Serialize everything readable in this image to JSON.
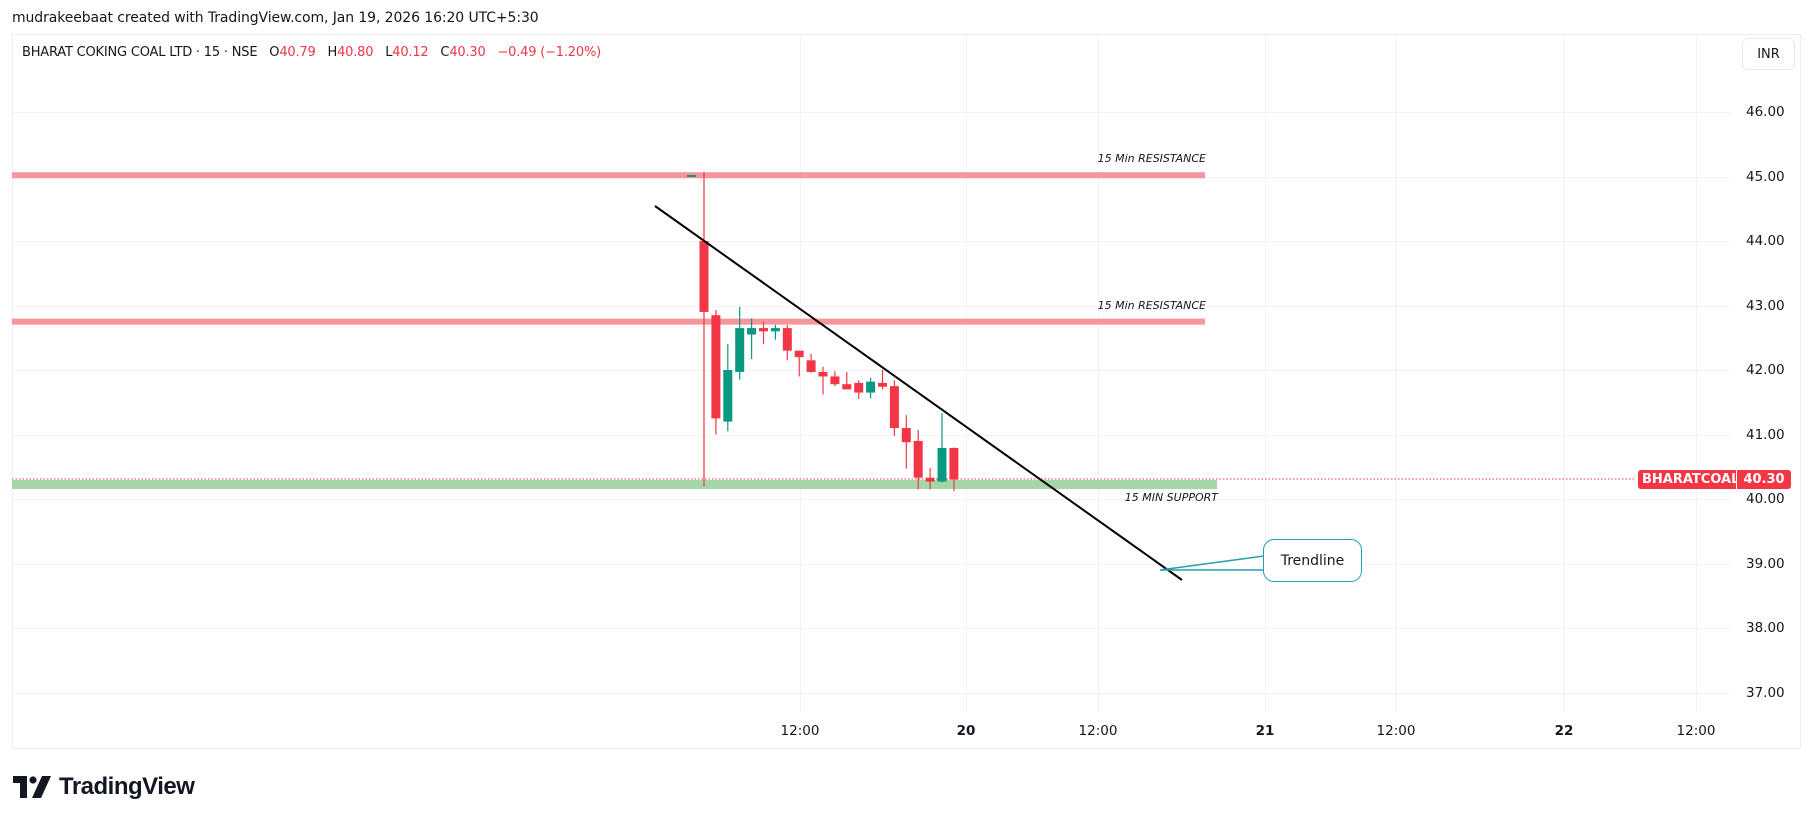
{
  "attribution": "mudrakeebaat created with TradingView.com, Jan 19, 2026 16:20 UTC+5:30",
  "legend": {
    "symbol": "BHARAT COKING COAL LTD · 15 · NSE",
    "open_label": "O",
    "open": "40.79",
    "high_label": "H",
    "high": "40.80",
    "low_label": "L",
    "low": "40.12",
    "close_label": "C",
    "close": "40.30",
    "change": "−0.49 (−1.20%)"
  },
  "currency": "INR",
  "price_tag": {
    "ticker": "BHARATCOAL",
    "price": "40.30"
  },
  "annotations": {
    "resistance_1": "15 Min RESISTANCE",
    "resistance_2": "15 Min RESISTANCE",
    "support": "15 MIN SUPPORT",
    "trendline_callout": "Trendline"
  },
  "brand": "TradingView",
  "colors": {
    "up": "#089981",
    "down": "#f23645",
    "resistance": "#f7959d",
    "support": "#a5d6a7",
    "callout_border": "#22a0b0",
    "trendline": "#000000"
  },
  "chart_data": {
    "type": "candlestick",
    "title": "BHARAT COKING COAL LTD · 15 · NSE",
    "currency": "INR",
    "interval": "15",
    "ylim": [
      36.6,
      46.9
    ],
    "yticks": [
      "46.00",
      "45.00",
      "44.00",
      "43.00",
      "42.00",
      "41.00",
      "40.00",
      "39.00",
      "38.00",
      "37.00"
    ],
    "xticks": [
      "12:00",
      "20",
      "12:00",
      "21",
      "12:00",
      "22",
      "12:00"
    ],
    "grid": true,
    "last_price": 40.3,
    "candles": [
      {
        "o": 44.0,
        "h": 45.07,
        "l": 40.2,
        "c": 42.9
      },
      {
        "o": 42.85,
        "h": 42.93,
        "l": 41.0,
        "c": 41.25
      },
      {
        "o": 41.2,
        "h": 42.4,
        "l": 41.05,
        "c": 42.0
      },
      {
        "o": 41.97,
        "h": 42.98,
        "l": 41.85,
        "c": 42.65
      },
      {
        "o": 42.55,
        "h": 42.8,
        "l": 42.17,
        "c": 42.65
      },
      {
        "o": 42.65,
        "h": 42.75,
        "l": 42.4,
        "c": 42.6
      },
      {
        "o": 42.6,
        "h": 42.7,
        "l": 42.47,
        "c": 42.65
      },
      {
        "o": 42.65,
        "h": 42.7,
        "l": 42.15,
        "c": 42.3
      },
      {
        "o": 42.3,
        "h": 42.3,
        "l": 41.9,
        "c": 42.2
      },
      {
        "o": 42.15,
        "h": 42.25,
        "l": 41.96,
        "c": 41.97
      },
      {
        "o": 41.97,
        "h": 42.05,
        "l": 41.62,
        "c": 41.9
      },
      {
        "o": 41.9,
        "h": 41.98,
        "l": 41.75,
        "c": 41.78
      },
      {
        "o": 41.78,
        "h": 41.97,
        "l": 41.7,
        "c": 41.7
      },
      {
        "o": 41.8,
        "h": 41.84,
        "l": 41.55,
        "c": 41.65
      },
      {
        "o": 41.65,
        "h": 41.88,
        "l": 41.56,
        "c": 41.82
      },
      {
        "o": 41.8,
        "h": 42.0,
        "l": 41.7,
        "c": 41.74
      },
      {
        "o": 41.75,
        "h": 41.84,
        "l": 40.98,
        "c": 41.1
      },
      {
        "o": 41.1,
        "h": 41.3,
        "l": 40.47,
        "c": 40.88
      },
      {
        "o": 40.9,
        "h": 41.07,
        "l": 40.15,
        "c": 40.33
      },
      {
        "o": 40.33,
        "h": 40.48,
        "l": 40.15,
        "c": 40.27
      },
      {
        "o": 40.27,
        "h": 41.33,
        "l": 40.25,
        "c": 40.79
      },
      {
        "o": 40.79,
        "h": 40.8,
        "l": 40.12,
        "c": 40.3
      }
    ],
    "levels": [
      {
        "label": "15 Min RESISTANCE",
        "price": 45.02,
        "type": "resistance"
      },
      {
        "label": "15 Min RESISTANCE",
        "price": 42.75,
        "type": "resistance"
      },
      {
        "label": "15 MIN SUPPORT",
        "price": 40.22,
        "type": "support"
      }
    ],
    "trendline": {
      "label": "Trendline",
      "from_price": 44.5,
      "to_price": 38.75
    }
  }
}
